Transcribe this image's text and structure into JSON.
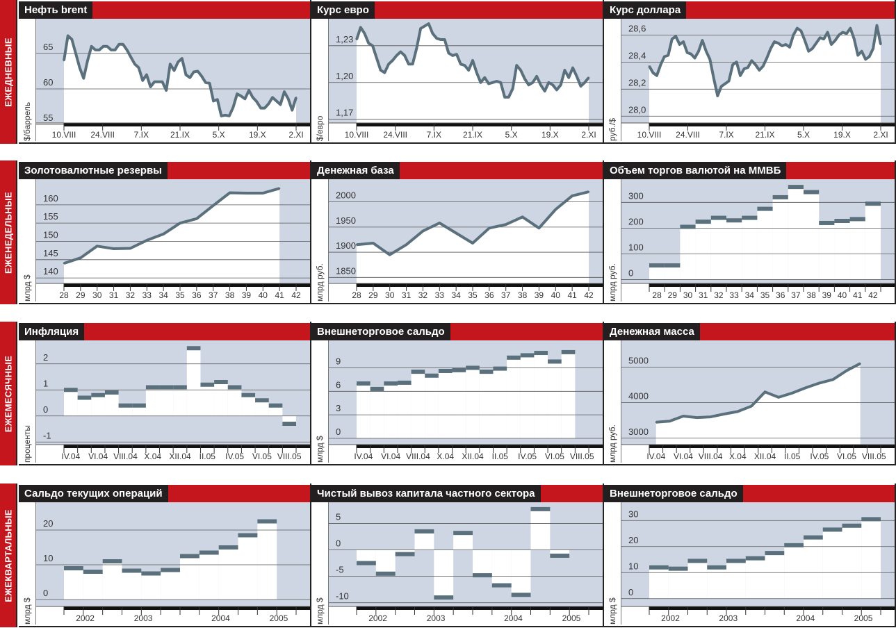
{
  "colors": {
    "accent": "#c4161c",
    "title_bg": "#231f20",
    "plot_bg": "#cfd6e3",
    "series": "#5b707d"
  },
  "rows": [
    {
      "label": "ЕЖЕДНЕВНЫЕ",
      "panels": [
        {
          "title": "Нефть brent",
          "ylabel": "$/баррель",
          "type": "line",
          "ticks": [
            55,
            60,
            65
          ],
          "tick_labels": [
            "55",
            "60",
            "65"
          ],
          "ylim": [
            55.2,
            69.9
          ],
          "values": [
            64,
            67.5,
            67,
            65,
            63,
            61.5,
            64,
            66,
            65.5,
            65.5,
            66,
            66,
            65.5,
            65.5,
            66.3,
            66.3,
            65.5,
            64.5,
            63.5,
            63,
            61.2,
            62,
            60.3,
            61,
            61,
            61,
            59.8,
            63.5,
            62.6,
            63.8,
            64.3,
            62,
            61.6,
            62.4,
            62.5,
            61.8,
            60.9,
            60.8,
            58.3,
            58.5,
            56.2,
            56.3,
            56.2,
            57.4,
            59.3,
            59,
            58.6,
            59.8,
            58.8,
            58.2,
            57.3,
            57.3,
            57.9,
            58.8,
            58.3,
            57.8,
            59.6,
            58.6,
            57,
            58.8
          ],
          "xlabels": [
            "10.VIII",
            "24.VIII",
            "7.IX",
            "21.IX",
            "5.X",
            "19.X",
            "2.XI"
          ]
        },
        {
          "title": "Курс евро",
          "ylabel": "$/евро",
          "type": "line",
          "ticks": [
            1.17,
            1.2,
            1.23
          ],
          "tick_labels": [
            "1,17",
            "1,20",
            "1,23"
          ],
          "ylim": [
            1.167,
            1.252
          ],
          "values": [
            1.235,
            1.245,
            1.24,
            1.232,
            1.23,
            1.22,
            1.21,
            1.208,
            1.215,
            1.218,
            1.222,
            1.225,
            1.222,
            1.215,
            1.215,
            1.228,
            1.244,
            1.246,
            1.248,
            1.24,
            1.236,
            1.235,
            1.235,
            1.224,
            1.222,
            1.223,
            1.215,
            1.214,
            1.21,
            1.218,
            1.208,
            1.2,
            1.204,
            1.199,
            1.2,
            1.201,
            1.2,
            1.188,
            1.188,
            1.195,
            1.214,
            1.21,
            1.203,
            1.198,
            1.2,
            1.205,
            1.198,
            1.193,
            1.2,
            1.198,
            1.194,
            1.198,
            1.21,
            1.204,
            1.212,
            1.205,
            1.197,
            1.2,
            1.204
          ],
          "xlabels": [
            "10.VIII",
            "24.VIII",
            "7.IX",
            "21.IX",
            "5.X",
            "19.X",
            "2.XI"
          ]
        },
        {
          "title": "Курс доллара",
          "ylabel": "руб./$",
          "type": "line",
          "ticks": [
            28.0,
            28.2,
            28.4,
            28.6
          ],
          "tick_labels": [
            "28,0",
            "28,2",
            "28,4",
            "28,6"
          ],
          "ylim": [
            27.95,
            28.72
          ],
          "values": [
            28.37,
            28.32,
            28.3,
            28.38,
            28.44,
            28.45,
            28.57,
            28.59,
            28.53,
            28.55,
            28.47,
            28.46,
            28.43,
            28.48,
            28.56,
            28.48,
            28.42,
            28.28,
            28.15,
            28.22,
            28.24,
            28.26,
            28.38,
            28.4,
            28.3,
            28.35,
            28.36,
            28.41,
            28.38,
            28.34,
            28.37,
            28.43,
            28.5,
            28.55,
            28.54,
            28.52,
            28.53,
            28.51,
            28.6,
            28.65,
            28.63,
            28.56,
            28.48,
            28.5,
            28.54,
            28.58,
            28.57,
            28.62,
            28.53,
            28.56,
            28.6,
            28.62,
            28.61,
            28.65,
            28.57,
            28.45,
            28.48,
            28.42,
            28.44,
            28.5,
            28.67,
            28.53
          ],
          "xlabels": [
            "10.VIII",
            "24.VIII",
            "7.IX",
            "21.IX",
            "5.X",
            "19.X",
            "2.XI"
          ]
        }
      ]
    },
    {
      "label": "ЕЖЕНЕДЕЛЬНЫЕ",
      "panels": [
        {
          "title": "Золотовалютные резервы",
          "ylabel": "млрд $",
          "type": "line",
          "ticks": [
            140,
            145,
            150,
            155,
            160
          ],
          "tick_labels": [
            "140",
            "145",
            "150",
            "155",
            "160"
          ],
          "ylim": [
            138.5,
            167
          ],
          "xmax": 14,
          "values": [
            144,
            145.5,
            148.7,
            148,
            148.1,
            150.3,
            152,
            155,
            156.2,
            159.8,
            163.3,
            163.2,
            163.2,
            164.5
          ],
          "xlabels": [
            "28",
            "29",
            "30",
            "31",
            "32",
            "33",
            "34",
            "35",
            "36",
            "37",
            "38",
            "39",
            "40",
            "41",
            "42"
          ]
        },
        {
          "title": "Денежная база",
          "ylabel": "млрд руб.",
          "type": "line",
          "ticks": [
            1850,
            1900,
            1950,
            2000
          ],
          "tick_labels": [
            "1850",
            "1900",
            "1950",
            "2000"
          ],
          "ylim": [
            1838,
            2045
          ],
          "xmax": 14,
          "values": [
            1915,
            1918,
            1895,
            1915,
            1942,
            1958,
            1938,
            1918,
            1948,
            1955,
            1970,
            1948,
            1985,
            2012,
            2020
          ],
          "xlabels": [
            "28",
            "29",
            "30",
            "31",
            "32",
            "33",
            "34",
            "35",
            "36",
            "37",
            "38",
            "39",
            "40",
            "41",
            "42"
          ]
        },
        {
          "title": "Объем торгов валютой на ММВБ",
          "ylabel": "млрд руб.",
          "type": "step",
          "baseline": 0,
          "ticks": [
            0,
            100,
            200,
            300
          ],
          "tick_labels": [
            "0",
            "100",
            "200",
            "300"
          ],
          "ylim": [
            -15,
            390
          ],
          "xmax": 15,
          "values": [
            55,
            55,
            205,
            225,
            240,
            230,
            240,
            275,
            320,
            360,
            340,
            220,
            228,
            235,
            295
          ],
          "xlabels": [
            "28",
            "29",
            "30",
            "31",
            "32",
            "33",
            "34",
            "35",
            "36",
            "37",
            "38",
            "39",
            "40",
            "41",
            "42"
          ]
        }
      ]
    },
    {
      "label": "ЕЖЕМЕСЯЧНЫЕ",
      "panels": [
        {
          "title": "Инфляция",
          "ylabel": "проценты",
          "type": "step",
          "baseline": 0,
          "ticks": [
            -1,
            0,
            1,
            2
          ],
          "tick_labels": [
            "-1",
            "0",
            "1",
            "2"
          ],
          "ylim": [
            -1.1,
            2.9
          ],
          "xmax": 17,
          "label_every": 2,
          "values": [
            1.0,
            0.7,
            0.8,
            0.9,
            0.4,
            0.4,
            1.1,
            1.1,
            1.1,
            2.6,
            1.2,
            1.3,
            1.1,
            0.8,
            0.6,
            0.4,
            -0.3
          ],
          "xlabels": [
            "IV.04",
            "VI.04",
            "VIII.04",
            "X.04",
            "XII.04",
            "II.05",
            "IV.05",
            "VI.05",
            "VIII.05"
          ]
        },
        {
          "title": "Внешнеторговое сальдо",
          "ylabel": "млрд $",
          "type": "step",
          "baseline": 0,
          "ticks": [
            0,
            3,
            6,
            9
          ],
          "tick_labels": [
            "0",
            "3",
            "6",
            "9"
          ],
          "ylim": [
            -0.8,
            12.5
          ],
          "xmax": 17,
          "label_every": 2,
          "values": [
            7,
            6.3,
            7,
            7.1,
            8.5,
            8,
            8.6,
            8.7,
            9,
            8.5,
            8.9,
            10.3,
            10.6,
            10.9,
            9.8,
            11
          ],
          "xlabels": [
            "IV.04",
            "VI.04",
            "VIII.04",
            "X.04",
            "XII.04",
            "II.05",
            "IV.05",
            "VI.05",
            "VIII.05"
          ]
        },
        {
          "title": "Денежная масса",
          "ylabel": "млрд руб.",
          "type": "line",
          "ticks": [
            3000,
            4000,
            5000
          ],
          "tick_labels": [
            "3000",
            "4000",
            "5000"
          ],
          "ylim": [
            2820,
            5750
          ],
          "xmax": 17,
          "offset": 0.5,
          "label_every": 2,
          "values": [
            3450,
            3480,
            3620,
            3580,
            3600,
            3680,
            3750,
            3900,
            4300,
            4150,
            4270,
            4420,
            4550,
            4650,
            4900,
            5100
          ],
          "xlabels": [
            "IV.04",
            "VI.04",
            "VIII.04",
            "X.04",
            "XII.04",
            "II.05",
            "IV.05",
            "VI.05",
            "VIII.05"
          ]
        }
      ]
    },
    {
      "label": "ЕЖЕКВАРТАЛЬНЫЕ",
      "panels": [
        {
          "title": "Сальдо текущих операций",
          "ylabel": "млрд $",
          "type": "step",
          "baseline": 0,
          "ticks": [
            0,
            10,
            20
          ],
          "tick_labels": [
            "0",
            "10",
            "20"
          ],
          "ylim": [
            -2,
            28
          ],
          "xmax": 12,
          "values": [
            9,
            8,
            11,
            8.3,
            7.5,
            8.5,
            12.5,
            13.5,
            15,
            18.5,
            22.5
          ],
          "xlabels": [
            "2002",
            "2003",
            "2004",
            "2005"
          ],
          "xlabel_pos": [
            1.1,
            4.1,
            8.1,
            11.1
          ]
        },
        {
          "title": "Чистый вывоз капитала частного сектора",
          "ylabel": "млрд $",
          "type": "step",
          "baseline": 0,
          "ticks": [
            -10,
            -5,
            0,
            5
          ],
          "tick_labels": [
            "-10",
            "-5",
            "0",
            "5"
          ],
          "ylim": [
            -10.7,
            9
          ],
          "xmax": 12,
          "values": [
            -2.5,
            -4.5,
            -0.8,
            3.5,
            -9,
            3.2,
            -4.8,
            -6.7,
            -8.5,
            7.7,
            -1.1
          ],
          "xlabels": [
            "2002",
            "2003",
            "2004",
            "2005"
          ],
          "xlabel_pos": [
            1.1,
            4.1,
            8.1,
            11.1
          ]
        },
        {
          "title": "Внешнеторговое сальдо",
          "ylabel": "млрд $",
          "type": "step",
          "baseline": 0,
          "ticks": [
            0,
            10,
            20,
            30
          ],
          "tick_labels": [
            "0",
            "10",
            "20",
            "30"
          ],
          "ylim": [
            -3,
            37
          ],
          "xmax": 12,
          "values": [
            12,
            11.5,
            14.5,
            12,
            14.5,
            15.5,
            17.5,
            20.5,
            23.5,
            26.5,
            28,
            30.5
          ],
          "xlabels": [
            "2002",
            "2003",
            "2004",
            "2005"
          ],
          "xlabel_pos": [
            1.1,
            4.1,
            8.1,
            11.1
          ]
        }
      ]
    }
  ]
}
